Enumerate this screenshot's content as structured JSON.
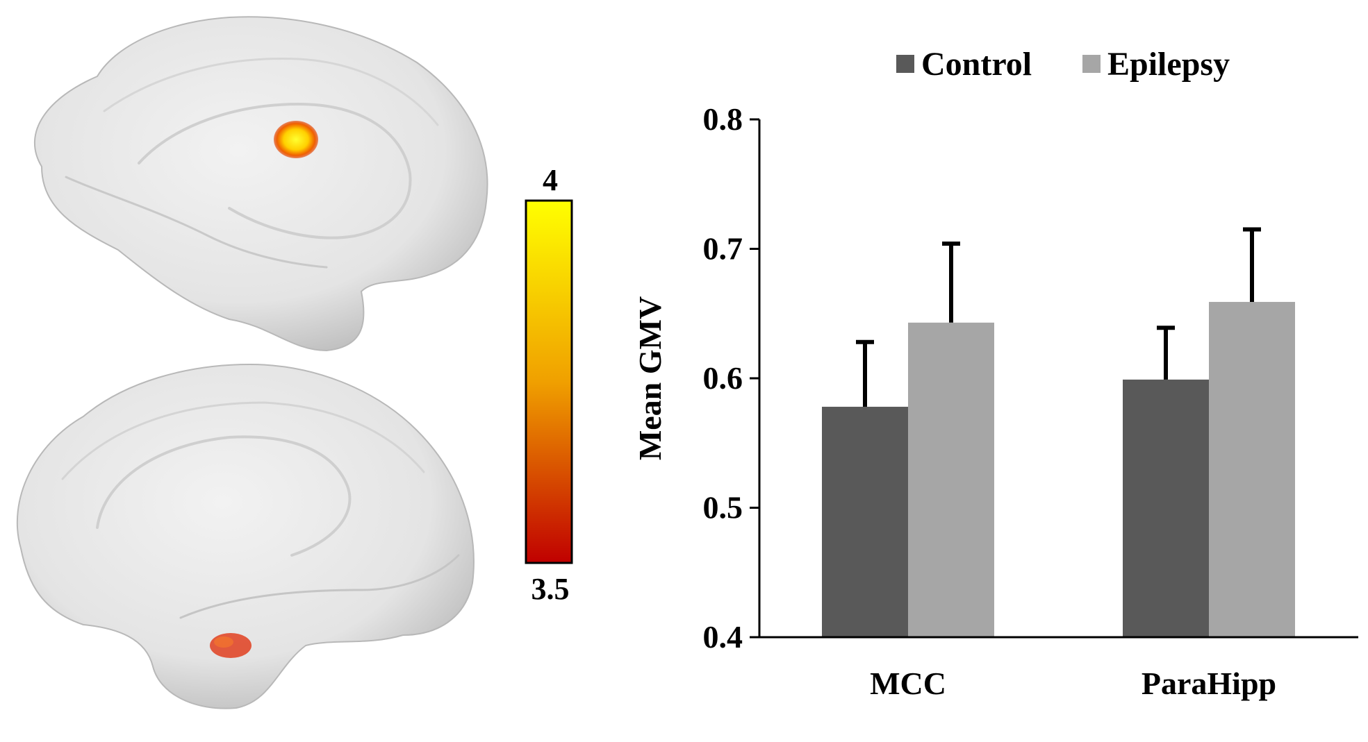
{
  "colors": {
    "control": "#595959",
    "epilepsy": "#a6a6a6",
    "brain_surface": "#e6e6e6",
    "colorbar_top": "#ffff00",
    "colorbar_mid": "#f0a000",
    "colorbar_bottom": "#c00000"
  },
  "colorbar": {
    "max_label": "4",
    "min_label": "3.5"
  },
  "chart_data": {
    "type": "bar",
    "title": "",
    "xlabel": "",
    "ylabel": "Mean GMV",
    "ylim": [
      0.4,
      0.8
    ],
    "yticks": [
      "0.4",
      "0.5",
      "0.6",
      "0.7",
      "0.8"
    ],
    "categories": [
      "MCC",
      "ParaHipp"
    ],
    "legend_position": "top",
    "series": [
      {
        "name": "Control",
        "color_key": "control",
        "values": [
          0.578,
          0.599
        ],
        "errors": [
          0.05,
          0.04
        ]
      },
      {
        "name": "Epilepsy",
        "color_key": "epilepsy",
        "values": [
          0.643,
          0.659
        ],
        "errors": [
          0.061,
          0.056
        ]
      }
    ]
  }
}
